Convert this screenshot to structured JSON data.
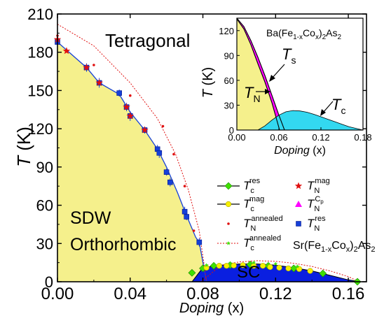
{
  "chart_data": {
    "type": "scatter",
    "main": {
      "xlabel_italic": "Doping",
      "xlabel_rest": " (x)",
      "ylabel_italic": "T",
      "ylabel_rest": " (K)",
      "xlim": [
        0.0,
        0.17
      ],
      "ylim": [
        0,
        210
      ],
      "xticks": [
        0.0,
        0.04,
        0.08,
        0.12,
        0.16
      ],
      "xtick_labels": [
        "0.00",
        "0.04",
        "0.08",
        "0.12",
        "0.16"
      ],
      "yticks": [
        0,
        30,
        60,
        90,
        120,
        150,
        180,
        210
      ],
      "ytick_labels": [
        "0",
        "30",
        "60",
        "90",
        "120",
        "150",
        "180",
        "210"
      ],
      "regions": {
        "tetragonal": "Tetragonal",
        "sdw": "SDW",
        "orthorhombic": "Orthorhombic",
        "sc": "SC"
      },
      "compound": {
        "base": "Sr(Fe",
        "sub1": "1-x",
        "mid": "Co",
        "sub2": "x",
        "end": ")",
        "sub3": "2",
        "tail": "As",
        "sub4": "2"
      },
      "colors": {
        "yellow_fill": "#f5f08c",
        "sc_fill": "#0a1fe0",
        "blue_marker": "#1540d8",
        "red": "#e01010",
        "green": "#40e000",
        "yellow_marker": "#f6f000",
        "magenta": "#ff00ff"
      },
      "series": [
        {
          "legend_base": "T",
          "legend_sub": "N",
          "legend_sup": "res",
          "marker": "square",
          "color": "#1540d8",
          "x": [
            0.0,
            0.016,
            0.023,
            0.034,
            0.038,
            0.04,
            0.048,
            0.055,
            0.056,
            0.06,
            0.062,
            0.07,
            0.071,
            0.078
          ],
          "y": [
            188,
            168,
            156,
            148,
            137,
            130,
            119,
            104,
            101,
            86,
            78,
            55,
            51,
            31
          ]
        },
        {
          "legend_base": "T",
          "legend_sub": "N",
          "legend_sup": "mag",
          "marker": "star",
          "color": "#e01010",
          "x": [
            0.0,
            0.005,
            0.016,
            0.023,
            0.038,
            0.04,
            0.048
          ],
          "y": [
            190,
            181,
            168,
            156,
            137,
            130,
            119
          ]
        },
        {
          "legend_base": "T",
          "legend_sub": "N",
          "legend_sup": "annealed",
          "marker": "dot",
          "color": "#e01010",
          "x": [
            0.0,
            0.02,
            0.04,
            0.058,
            0.064,
            0.07,
            0.075
          ],
          "y": [
            193,
            170,
            146,
            122,
            100,
            75,
            40
          ]
        },
        {
          "legend_base": "T",
          "legend_sub": "c",
          "legend_sup": "res",
          "marker": "diamond",
          "color": "#40e000",
          "x": [
            0.074,
            0.08,
            0.086,
            0.095,
            0.106,
            0.116,
            0.13,
            0.146,
            0.165
          ],
          "y": [
            7,
            10.5,
            12.5,
            13,
            13.5,
            12.5,
            10.5,
            6.5,
            0
          ]
        },
        {
          "legend_base": "T",
          "legend_sub": "c",
          "legend_sup": "mag",
          "marker": "circle",
          "color": "#f6f000",
          "x": [
            0.082,
            0.089,
            0.093,
            0.097,
            0.102,
            0.108,
            0.113,
            0.117,
            0.122,
            0.127,
            0.133,
            0.139
          ],
          "y": [
            11,
            12.5,
            12.5,
            12.8,
            13,
            12.5,
            12.5,
            11.5,
            11,
            10.5,
            10,
            8.5
          ]
        },
        {
          "legend_base": "T",
          "legend_sub": "c",
          "legend_sup": "annealed",
          "marker": "smallstar",
          "color": "#40e000",
          "x": [
            0.082,
            0.095,
            0.108,
            0.12,
            0.132,
            0.146
          ],
          "y": [
            13,
            14.5,
            15,
            14,
            12,
            7
          ]
        }
      ],
      "legend_extra": {
        "legend_base": "T",
        "legend_sub": "N",
        "legend_sup": "C",
        "legend_supsub": "p",
        "marker": "triangle",
        "color": "#ff00ff"
      },
      "tn_line": {
        "x": [
          0.0,
          0.016,
          0.023,
          0.034,
          0.04,
          0.048,
          0.055,
          0.06,
          0.066,
          0.071,
          0.076,
          0.078,
          0.082
        ],
        "y": [
          188,
          168,
          156,
          147,
          133,
          119,
          104,
          90,
          70,
          52,
          35,
          31,
          0
        ]
      },
      "tn_annealed_fit": {
        "x": [
          0.0,
          0.02,
          0.04,
          0.055,
          0.065,
          0.072,
          0.078,
          0.082
        ],
        "y": [
          202,
          185,
          156,
          128,
          100,
          72,
          40,
          0
        ]
      },
      "tc_annealed_fit": {
        "x": [
          0.079,
          0.09,
          0.1,
          0.11,
          0.12,
          0.13,
          0.14,
          0.15,
          0.16,
          0.166
        ],
        "y": [
          0,
          13,
          15.5,
          16.5,
          16,
          14.5,
          12,
          8.5,
          4,
          0
        ]
      },
      "sc_dome": {
        "x": [
          0.074,
          0.08,
          0.09,
          0.1,
          0.11,
          0.12,
          0.13,
          0.14,
          0.15,
          0.16,
          0.167
        ],
        "y": [
          0,
          11,
          13,
          14,
          14,
          13,
          11,
          8.5,
          5,
          1.5,
          0
        ]
      }
    },
    "inset": {
      "title": {
        "base": "Ba(Fe",
        "sub1": "1-x",
        "mid": "Co",
        "sub2": "x",
        "end": ")",
        "sub3": "2",
        "tail": "As",
        "sub4": "2"
      },
      "xlabel_italic": "Doping",
      "xlabel_rest": " (x)",
      "ylabel_italic": "T",
      "ylabel_rest": " (K)",
      "xlim": [
        0.0,
        0.18
      ],
      "ylim": [
        0,
        135
      ],
      "xticks": [
        0.0,
        0.06,
        0.12,
        0.18
      ],
      "xtick_labels": [
        "0.00",
        "0.06",
        "0.12",
        "0.18"
      ],
      "yticks": [
        0,
        30,
        60,
        90,
        120
      ],
      "ytick_labels": [
        "0",
        "30",
        "60",
        "90",
        "120"
      ],
      "ts_label": {
        "base": "T",
        "sub": "s"
      },
      "tn_label": {
        "base": "T",
        "sub": "N"
      },
      "tc_label": {
        "base": "T",
        "sub": "c"
      },
      "tn_line": {
        "x": [
          0.0,
          0.01,
          0.02,
          0.03,
          0.04,
          0.05,
          0.061
        ],
        "y": [
          134,
          122,
          103,
          80,
          58,
          33,
          0
        ]
      },
      "ts_line": {
        "x": [
          0.0,
          0.01,
          0.02,
          0.03,
          0.04,
          0.05,
          0.06,
          0.068
        ],
        "y": [
          135,
          125,
          108,
          88,
          66,
          42,
          18,
          0
        ]
      },
      "sc_dome": {
        "x": [
          0.03,
          0.04,
          0.05,
          0.06,
          0.07,
          0.08,
          0.09,
          0.1,
          0.11,
          0.12,
          0.13,
          0.14,
          0.15,
          0.16,
          0.17,
          0.18
        ],
        "y": [
          0,
          5,
          12,
          18,
          22,
          23.5,
          23,
          21.5,
          19,
          16,
          13,
          10,
          7,
          4,
          2,
          0
        ]
      },
      "colors": {
        "yellow_fill": "#f5f08c",
        "cyan_fill": "#33d8f0",
        "magenta": "#ff00ff"
      }
    }
  }
}
